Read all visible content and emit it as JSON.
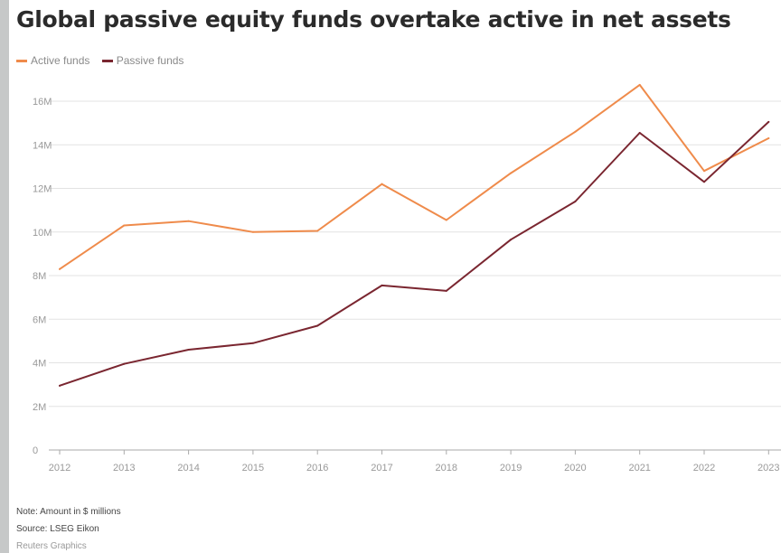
{
  "title": "Global passive equity funds overtake active in net assets",
  "colors": {
    "active": "#ef8b4b",
    "passive": "#7a2630",
    "grid": "#e3e3e3",
    "axis": "#aaaaaa",
    "tick_text": "#999999"
  },
  "chart_data": {
    "type": "line",
    "title": "Global passive equity funds overtake active in net assets",
    "xlabel": "",
    "ylabel": "",
    "categories": [
      "2012",
      "2013",
      "2014",
      "2015",
      "2016",
      "2017",
      "2018",
      "2019",
      "2020",
      "2021",
      "2022",
      "2023"
    ],
    "series": [
      {
        "name": "Active funds",
        "color": "#ef8b4b",
        "values": [
          8.3,
          10.3,
          10.5,
          10.0,
          10.05,
          12.2,
          10.55,
          12.7,
          14.6,
          16.75,
          12.8,
          14.3
        ]
      },
      {
        "name": "Passive funds",
        "color": "#7a2630",
        "values": [
          2.95,
          3.95,
          4.6,
          4.9,
          5.7,
          7.55,
          7.3,
          9.65,
          11.4,
          14.55,
          12.3,
          15.05
        ]
      }
    ],
    "y_unit": "M",
    "ylim": [
      0,
      16
    ],
    "y_ticks": [
      0,
      2,
      4,
      6,
      8,
      10,
      12,
      14,
      16
    ],
    "y_tick_labels": [
      "0",
      "2M",
      "4M",
      "6M",
      "8M",
      "10M",
      "12M",
      "14M",
      "16M"
    ],
    "grid": true,
    "legend_position": "top-left"
  },
  "footer": {
    "note": "Note: Amount in $ millions",
    "source": "Source: LSEG Eikon",
    "credit": "Reuters Graphics"
  }
}
